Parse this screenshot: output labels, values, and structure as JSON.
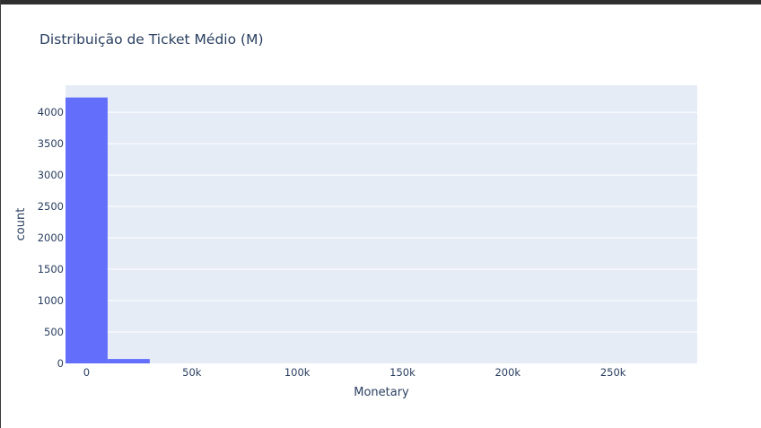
{
  "chart_data": {
    "type": "bar",
    "title": "Distribuição de Ticket Médio (M)",
    "xlabel": "Monetary",
    "ylabel": "count",
    "bins": [
      {
        "x0": -10000,
        "x1": 10000,
        "count": 4235
      },
      {
        "x0": 10000,
        "x1": 30000,
        "count": 70
      }
    ],
    "xlim": [
      -10000,
      290000
    ],
    "ylim": [
      0,
      4430
    ],
    "x_ticks": [
      {
        "value": 0,
        "label": "0"
      },
      {
        "value": 50000,
        "label": "50k"
      },
      {
        "value": 100000,
        "label": "100k"
      },
      {
        "value": 150000,
        "label": "150k"
      },
      {
        "value": 200000,
        "label": "200k"
      },
      {
        "value": 250000,
        "label": "250k"
      }
    ],
    "y_ticks": [
      {
        "value": 0,
        "label": "0"
      },
      {
        "value": 500,
        "label": "500"
      },
      {
        "value": 1000,
        "label": "1000"
      },
      {
        "value": 1500,
        "label": "1500"
      },
      {
        "value": 2000,
        "label": "2000"
      },
      {
        "value": 2500,
        "label": "2500"
      },
      {
        "value": 3000,
        "label": "3000"
      },
      {
        "value": 3500,
        "label": "3500"
      },
      {
        "value": 4000,
        "label": "4000"
      }
    ],
    "grid": true,
    "colors": {
      "bar": "#636efa",
      "plot_bg": "#e5ecf6",
      "grid": "#ffffff",
      "text": "#2a3f5f"
    }
  }
}
